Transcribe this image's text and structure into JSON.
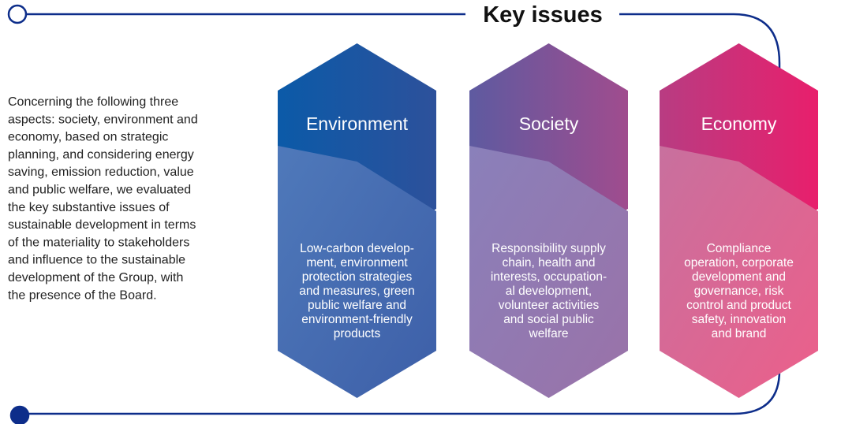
{
  "title": "Key issues",
  "description": [
    "Concerning the following three",
    "aspects: society, environment and",
    "economy, based on strategic",
    "planning, and considering energy",
    "saving, emission reduction, value",
    "and public welfare, we evaluated",
    "the key substantive issues of",
    "sustainable development in terms",
    "of the materiality to stakeholders",
    "and influence to the sustainable",
    "development of the Group, with",
    "the presence of the Board."
  ],
  "issues": [
    {
      "heading": "Environment",
      "body": [
        "Low-carbon develop-",
        "ment, environment",
        "protection strategies",
        "and measures, green",
        "public welfare and",
        "environment-friendly",
        "products"
      ]
    },
    {
      "heading": "Society",
      "body": [
        "Responsibility supply",
        "chain, health and",
        "interests, occupation-",
        "al development,",
        "volunteer activities",
        "and social public",
        "welfare"
      ]
    },
    {
      "heading": "Economy",
      "body": [
        "Compliance",
        "operation, corporate",
        "development and",
        "governance, risk",
        "control and product",
        "safety, innovation",
        "and brand"
      ]
    }
  ]
}
